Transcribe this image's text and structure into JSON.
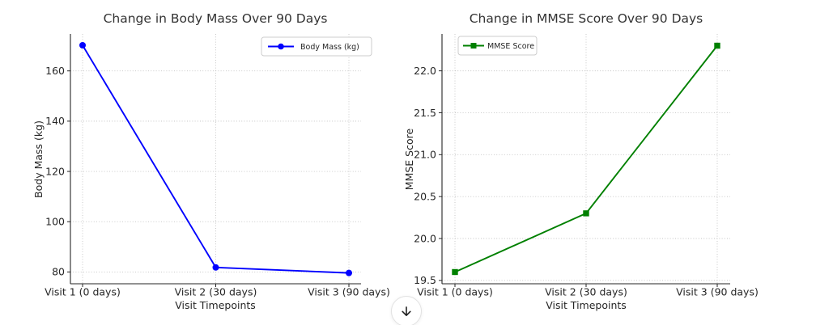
{
  "chart_data": [
    {
      "type": "line",
      "title": "Change in Body Mass Over 90 Days",
      "xlabel": "Visit Timepoints",
      "ylabel": "Body Mass (kg)",
      "categories": [
        "Visit 1 (0 days)",
        "Visit 2 (30 days)",
        "Visit 3 (90 days)"
      ],
      "series": [
        {
          "name": "Body Mass (kg)",
          "color": "#0000ff",
          "marker": "circle",
          "values": [
            170.2,
            81.8,
            79.6
          ]
        }
      ],
      "yticks": [
        80,
        100,
        120,
        140,
        160
      ],
      "ytick_labels": [
        "80",
        "100",
        "120",
        "140",
        "160"
      ],
      "ylim": [
        75.3,
        174.7
      ],
      "grid": true,
      "legend_position": "upper right"
    },
    {
      "type": "line",
      "title": "Change in MMSE Score Over 90 Days",
      "xlabel": "Visit Timepoints",
      "ylabel": "MMSE Score",
      "categories": [
        "Visit 1 (0 days)",
        "Visit 2 (30 days)",
        "Visit 3 (90 days)"
      ],
      "series": [
        {
          "name": "MMSE Score",
          "color": "#008000",
          "marker": "square",
          "values": [
            19.6,
            20.3,
            22.3
          ]
        }
      ],
      "yticks": [
        19.5,
        20.0,
        20.5,
        21.0,
        21.5,
        22.0
      ],
      "ytick_labels": [
        "19.5",
        "20.0",
        "20.5",
        "21.0",
        "21.5",
        "22.0"
      ],
      "ylim": [
        19.46,
        22.44
      ],
      "grid": true,
      "legend_position": "upper left"
    }
  ],
  "ui": {
    "scroll_button": {
      "icon": "down-arrow"
    }
  }
}
